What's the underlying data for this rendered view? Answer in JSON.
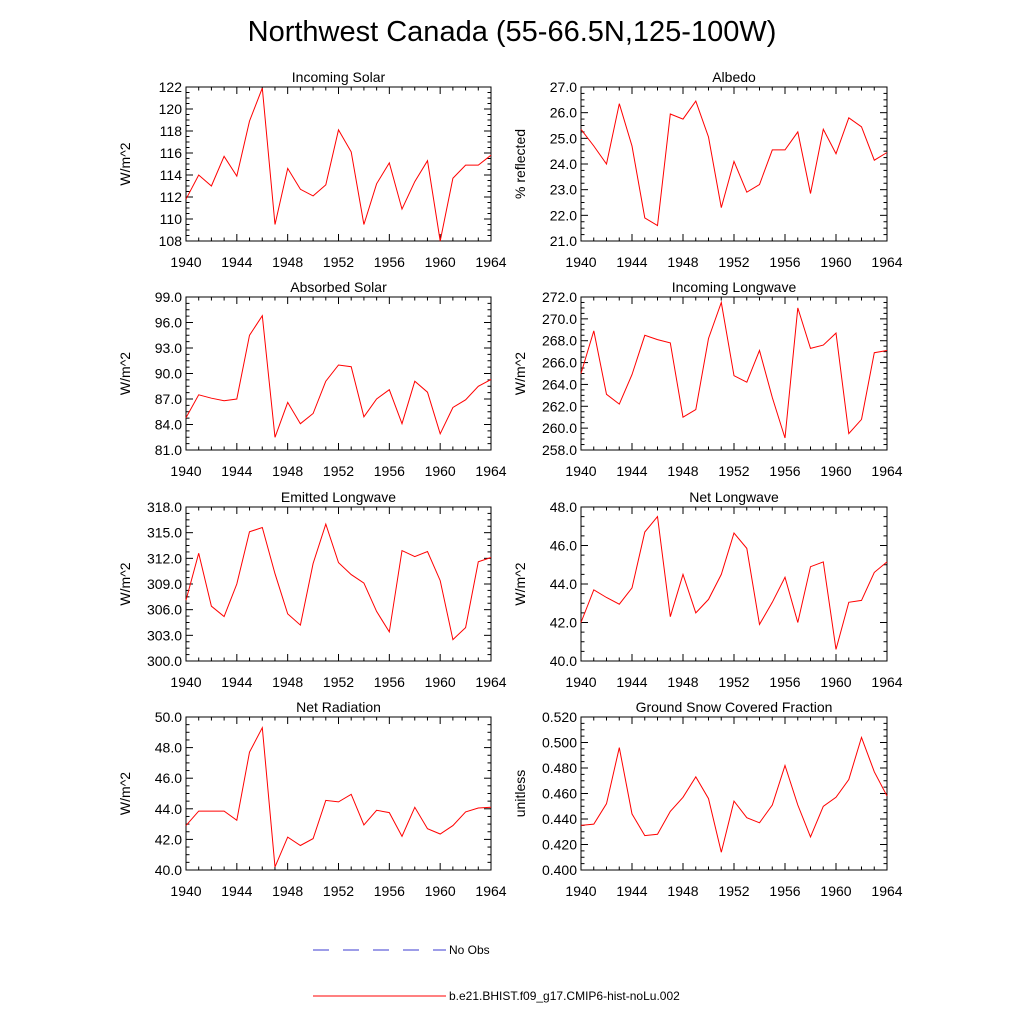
{
  "figure": {
    "title": "Northwest Canada (55-66.5N,125-100W)"
  },
  "legend": {
    "items": [
      {
        "label": "No Obs",
        "color": "#3b3bd1",
        "style": "dashed"
      },
      {
        "label": "b.e21.BHIST.f09_g17.CMIP6-hist-noLu.002",
        "color": "#ff0000",
        "style": "solid"
      }
    ]
  },
  "chart_data": [
    {
      "type": "line",
      "title": "Incoming Solar",
      "ylabel": "W/m^2",
      "xlim": [
        1940,
        1964
      ],
      "ylim": [
        108,
        122
      ],
      "xticks": [
        1940,
        1944,
        1948,
        1952,
        1956,
        1960,
        1964
      ],
      "yticks": [
        108,
        110,
        112,
        114,
        116,
        118,
        120,
        122
      ],
      "ytick_labels": [
        "108",
        "110",
        "112",
        "114",
        "116",
        "118",
        "120",
        "122"
      ],
      "series": [
        {
          "color": "#ff0000",
          "x": [
            1940,
            1941,
            1942,
            1943,
            1944,
            1945,
            1946,
            1947,
            1948,
            1949,
            1950,
            1951,
            1952,
            1953,
            1954,
            1955,
            1956,
            1957,
            1958,
            1959,
            1960,
            1961,
            1962,
            1963,
            1964
          ],
          "values": [
            111.8,
            114.0,
            113.0,
            115.7,
            113.9,
            118.9,
            121.9,
            109.5,
            114.6,
            112.7,
            112.1,
            113.1,
            118.1,
            116.1,
            109.5,
            113.2,
            115.1,
            110.9,
            113.4,
            115.3,
            108.0,
            113.7,
            114.9,
            114.9,
            115.8
          ]
        }
      ]
    },
    {
      "type": "line",
      "title": "Albedo",
      "ylabel": "% reflected",
      "xlim": [
        1940,
        1964
      ],
      "ylim": [
        21.0,
        27.0
      ],
      "xticks": [
        1940,
        1944,
        1948,
        1952,
        1956,
        1960,
        1964
      ],
      "yticks": [
        21.0,
        22.0,
        23.0,
        24.0,
        25.0,
        26.0,
        27.0
      ],
      "ytick_labels": [
        "21.0",
        "22.0",
        "23.0",
        "24.0",
        "25.0",
        "26.0",
        "27.0"
      ],
      "series": [
        {
          "color": "#ff0000",
          "x": [
            1940,
            1941,
            1942,
            1943,
            1944,
            1945,
            1946,
            1947,
            1948,
            1949,
            1950,
            1951,
            1952,
            1953,
            1954,
            1955,
            1956,
            1957,
            1958,
            1959,
            1960,
            1961,
            1962,
            1963,
            1964
          ],
          "values": [
            25.35,
            24.7,
            24.0,
            26.35,
            24.7,
            21.9,
            21.6,
            25.95,
            25.75,
            26.45,
            25.05,
            22.3,
            24.1,
            22.9,
            23.2,
            24.55,
            24.55,
            25.25,
            22.85,
            25.35,
            24.4,
            25.8,
            25.45,
            24.15,
            24.45
          ]
        }
      ]
    },
    {
      "type": "line",
      "title": "Absorbed Solar",
      "ylabel": "W/m^2",
      "xlim": [
        1940,
        1964
      ],
      "ylim": [
        81.0,
        99.0
      ],
      "xticks": [
        1940,
        1944,
        1948,
        1952,
        1956,
        1960,
        1964
      ],
      "yticks": [
        81.0,
        84.0,
        87.0,
        90.0,
        93.0,
        96.0,
        99.0
      ],
      "ytick_labels": [
        "81.0",
        "84.0",
        "87.0",
        "90.0",
        "93.0",
        "96.0",
        "99.0"
      ],
      "series": [
        {
          "color": "#ff0000",
          "x": [
            1940,
            1941,
            1942,
            1943,
            1944,
            1945,
            1946,
            1947,
            1948,
            1949,
            1950,
            1951,
            1952,
            1953,
            1954,
            1955,
            1956,
            1957,
            1958,
            1959,
            1960,
            1961,
            1962,
            1963,
            1964
          ],
          "values": [
            84.8,
            87.5,
            87.1,
            86.8,
            87.0,
            94.5,
            96.8,
            82.5,
            86.6,
            84.1,
            85.3,
            89.1,
            91.0,
            90.8,
            84.9,
            87.0,
            88.1,
            84.1,
            89.1,
            87.8,
            82.9,
            86.0,
            86.9,
            88.5,
            89.3
          ]
        }
      ]
    },
    {
      "type": "line",
      "title": "Incoming Longwave",
      "ylabel": "W/m^2",
      "xlim": [
        1940,
        1964
      ],
      "ylim": [
        258.0,
        272.0
      ],
      "xticks": [
        1940,
        1944,
        1948,
        1952,
        1956,
        1960,
        1964
      ],
      "yticks": [
        258.0,
        260.0,
        262.0,
        264.0,
        266.0,
        268.0,
        270.0,
        272.0
      ],
      "ytick_labels": [
        "258.0",
        "260.0",
        "262.0",
        "264.0",
        "266.0",
        "268.0",
        "270.0",
        "272.0"
      ],
      "series": [
        {
          "color": "#ff0000",
          "x": [
            1940,
            1941,
            1942,
            1943,
            1944,
            1945,
            1946,
            1947,
            1948,
            1949,
            1950,
            1951,
            1952,
            1953,
            1954,
            1955,
            1956,
            1957,
            1958,
            1959,
            1960,
            1961,
            1962,
            1963,
            1964
          ],
          "values": [
            265.0,
            268.9,
            263.1,
            262.2,
            264.9,
            268.5,
            268.1,
            267.8,
            261.0,
            261.7,
            268.2,
            271.5,
            264.8,
            264.2,
            267.1,
            262.8,
            259.1,
            271.0,
            267.3,
            267.6,
            268.7,
            259.5,
            260.8,
            266.9,
            267.1
          ]
        }
      ]
    },
    {
      "type": "line",
      "title": "Emitted Longwave",
      "ylabel": "W/m^2",
      "xlim": [
        1940,
        1964
      ],
      "ylim": [
        300.0,
        318.0
      ],
      "xticks": [
        1940,
        1944,
        1948,
        1952,
        1956,
        1960,
        1964
      ],
      "yticks": [
        300.0,
        303.0,
        306.0,
        309.0,
        312.0,
        315.0,
        318.0
      ],
      "ytick_labels": [
        "300.0",
        "303.0",
        "306.0",
        "309.0",
        "312.0",
        "315.0",
        "318.0"
      ],
      "series": [
        {
          "color": "#ff0000",
          "x": [
            1940,
            1941,
            1942,
            1943,
            1944,
            1945,
            1946,
            1947,
            1948,
            1949,
            1950,
            1951,
            1952,
            1953,
            1954,
            1955,
            1956,
            1957,
            1958,
            1959,
            1960,
            1961,
            1962,
            1963,
            1964
          ],
          "values": [
            307.1,
            312.6,
            306.4,
            305.2,
            309.0,
            315.1,
            315.6,
            310.2,
            305.5,
            304.2,
            311.4,
            316.0,
            311.5,
            310.1,
            309.1,
            305.8,
            303.4,
            312.9,
            312.2,
            312.8,
            309.4,
            302.5,
            303.9,
            311.6,
            312.1
          ]
        }
      ]
    },
    {
      "type": "line",
      "title": "Net Longwave",
      "ylabel": "W/m^2",
      "xlim": [
        1940,
        1964
      ],
      "ylim": [
        40.0,
        48.0
      ],
      "xticks": [
        1940,
        1944,
        1948,
        1952,
        1956,
        1960,
        1964
      ],
      "yticks": [
        40.0,
        42.0,
        44.0,
        46.0,
        48.0
      ],
      "ytick_labels": [
        "40.0",
        "42.0",
        "44.0",
        "46.0",
        "48.0"
      ],
      "series": [
        {
          "color": "#ff0000",
          "x": [
            1940,
            1941,
            1942,
            1943,
            1944,
            1945,
            1946,
            1947,
            1948,
            1949,
            1950,
            1951,
            1952,
            1953,
            1954,
            1955,
            1956,
            1957,
            1958,
            1959,
            1960,
            1961,
            1962,
            1963,
            1964
          ],
          "values": [
            42.0,
            43.7,
            43.3,
            42.95,
            43.8,
            46.7,
            47.5,
            42.3,
            44.5,
            42.5,
            43.2,
            44.5,
            46.65,
            45.85,
            41.9,
            43.05,
            44.35,
            42.0,
            44.9,
            45.15,
            40.6,
            43.05,
            43.15,
            44.6,
            45.15
          ]
        }
      ]
    },
    {
      "type": "line",
      "title": "Net Radiation",
      "ylabel": "W/m^2",
      "xlim": [
        1940,
        1964
      ],
      "ylim": [
        40.0,
        50.0
      ],
      "xticks": [
        1940,
        1944,
        1948,
        1952,
        1956,
        1960,
        1964
      ],
      "yticks": [
        40.0,
        42.0,
        44.0,
        46.0,
        48.0,
        50.0
      ],
      "ytick_labels": [
        "40.0",
        "42.0",
        "44.0",
        "46.0",
        "48.0",
        "50.0"
      ],
      "series": [
        {
          "color": "#ff0000",
          "x": [
            1940,
            1941,
            1942,
            1943,
            1944,
            1945,
            1946,
            1947,
            1948,
            1949,
            1950,
            1951,
            1952,
            1953,
            1954,
            1955,
            1956,
            1957,
            1958,
            1959,
            1960,
            1961,
            1962,
            1963,
            1964
          ],
          "values": [
            42.9,
            43.85,
            43.85,
            43.85,
            43.25,
            47.7,
            49.3,
            40.2,
            42.15,
            41.6,
            42.05,
            44.55,
            44.45,
            44.95,
            42.95,
            43.9,
            43.75,
            42.2,
            44.1,
            42.7,
            42.35,
            42.9,
            43.8,
            44.05,
            44.1
          ]
        }
      ]
    },
    {
      "type": "line",
      "title": "Ground Snow Covered Fraction",
      "ylabel": "unitless",
      "xlim": [
        1940,
        1964
      ],
      "ylim": [
        0.4,
        0.52
      ],
      "xticks": [
        1940,
        1944,
        1948,
        1952,
        1956,
        1960,
        1964
      ],
      "yticks": [
        0.4,
        0.42,
        0.44,
        0.46,
        0.48,
        0.5,
        0.52
      ],
      "ytick_labels": [
        "0.400",
        "0.420",
        "0.440",
        "0.460",
        "0.480",
        "0.500",
        "0.520"
      ],
      "series": [
        {
          "color": "#ff0000",
          "x": [
            1940,
            1941,
            1942,
            1943,
            1944,
            1945,
            1946,
            1947,
            1948,
            1949,
            1950,
            1951,
            1952,
            1953,
            1954,
            1955,
            1956,
            1957,
            1958,
            1959,
            1960,
            1961,
            1962,
            1963,
            1964
          ],
          "values": [
            0.435,
            0.436,
            0.452,
            0.496,
            0.444,
            0.427,
            0.428,
            0.446,
            0.457,
            0.473,
            0.456,
            0.414,
            0.454,
            0.441,
            0.437,
            0.451,
            0.482,
            0.451,
            0.426,
            0.45,
            0.457,
            0.471,
            0.504,
            0.477,
            0.458
          ]
        }
      ]
    }
  ]
}
